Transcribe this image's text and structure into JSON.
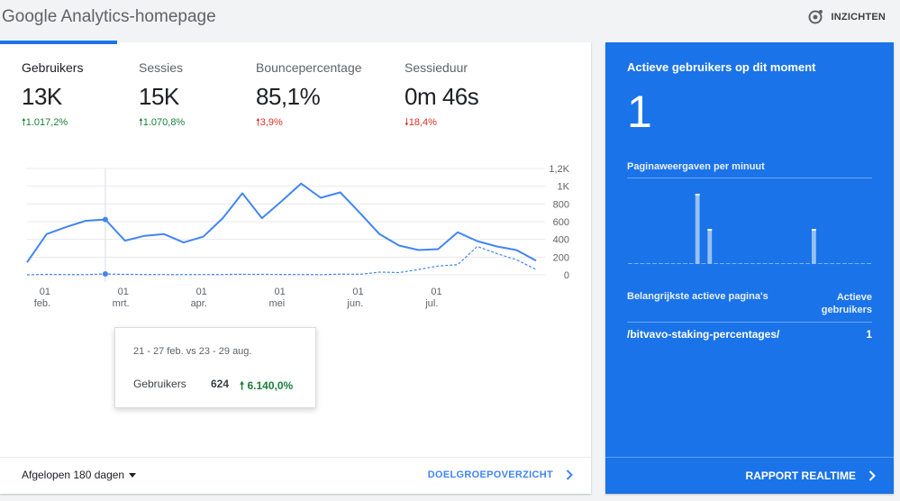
{
  "header": {
    "title": "Google Analytics-homepage",
    "insights_label": "INZICHTEN",
    "insights_icon": "insights-icon"
  },
  "metrics": [
    {
      "label": "Gebruikers",
      "value": "13K",
      "change": "1.017,2%",
      "direction": "up"
    },
    {
      "label": "Sessies",
      "value": "15K",
      "change": "1.070,8%",
      "direction": "up"
    },
    {
      "label": "Bouncepercentage",
      "value": "85,1%",
      "change": "3,9%",
      "direction": "up-bad"
    },
    {
      "label": "Sessieduur",
      "value": "0m 46s",
      "change": "18,4%",
      "direction": "down"
    }
  ],
  "colors": {
    "accent": "#1a73e8",
    "series_line": "#4285f4",
    "up": "#188038",
    "down": "#d93025"
  },
  "chart_data": {
    "type": "line",
    "title": "",
    "x_tick_labels": [
      {
        "day": "01",
        "month": "feb."
      },
      {
        "day": "01",
        "month": "mrt."
      },
      {
        "day": "01",
        "month": "apr."
      },
      {
        "day": "01",
        "month": "mei"
      },
      {
        "day": "01",
        "month": "jun."
      },
      {
        "day": "01",
        "month": "jul."
      }
    ],
    "x_tick_index": [
      1,
      5,
      9,
      13,
      17,
      21
    ],
    "y_ticks": [
      0,
      200,
      400,
      600,
      800,
      1000,
      1200
    ],
    "y_tick_labels": [
      "0",
      "200",
      "400",
      "600",
      "800",
      "1K",
      "1,2K"
    ],
    "ylim": [
      0,
      1200
    ],
    "grid": true,
    "legend": "none",
    "series": [
      {
        "name": "",
        "style": "solid",
        "values": [
          140,
          460,
          540,
          610,
          624,
          385,
          440,
          460,
          365,
          430,
          640,
          920,
          640,
          830,
          1030,
          870,
          930,
          700,
          460,
          330,
          280,
          290,
          480,
          380,
          320,
          280,
          160
        ]
      },
      {
        "name": "",
        "style": "dashed",
        "values": [
          0,
          5,
          3,
          2,
          10,
          5,
          4,
          3,
          2,
          3,
          4,
          6,
          5,
          4,
          3,
          2,
          8,
          6,
          30,
          25,
          60,
          100,
          115,
          320,
          240,
          170,
          60
        ]
      }
    ],
    "hover_index": 4,
    "tooltip": {
      "range": "21 - 27 feb. vs 23 - 29 aug.",
      "metric": "Gebruikers",
      "value": "624",
      "change": "6.140,0%"
    }
  },
  "footer": {
    "range_label": "Afgelopen 180 dagen",
    "link_label": "DOELGROEPOVERZICHT"
  },
  "realtime": {
    "title": "Actieve gebruikers op dit moment",
    "count": "1",
    "pageviews_label": "Paginaweergaven per minuut",
    "pageviews_per_minute": [
      0,
      0,
      0,
      0,
      0,
      0,
      0,
      0,
      0,
      0,
      0,
      2,
      0,
      1,
      0,
      0,
      0,
      0,
      0,
      0,
      0,
      0,
      0,
      0,
      0,
      0,
      0,
      0,
      0,
      0,
      1,
      0,
      0,
      0,
      0,
      0,
      0,
      0,
      0,
      0
    ],
    "table_header_left": "Belangrijkste actieve pagina's",
    "table_header_right": "Actieve gebruikers",
    "rows": [
      {
        "page": "/bitvavo-staking-percentages/",
        "users": "1"
      }
    ],
    "link_label": "RAPPORT REALTIME"
  }
}
